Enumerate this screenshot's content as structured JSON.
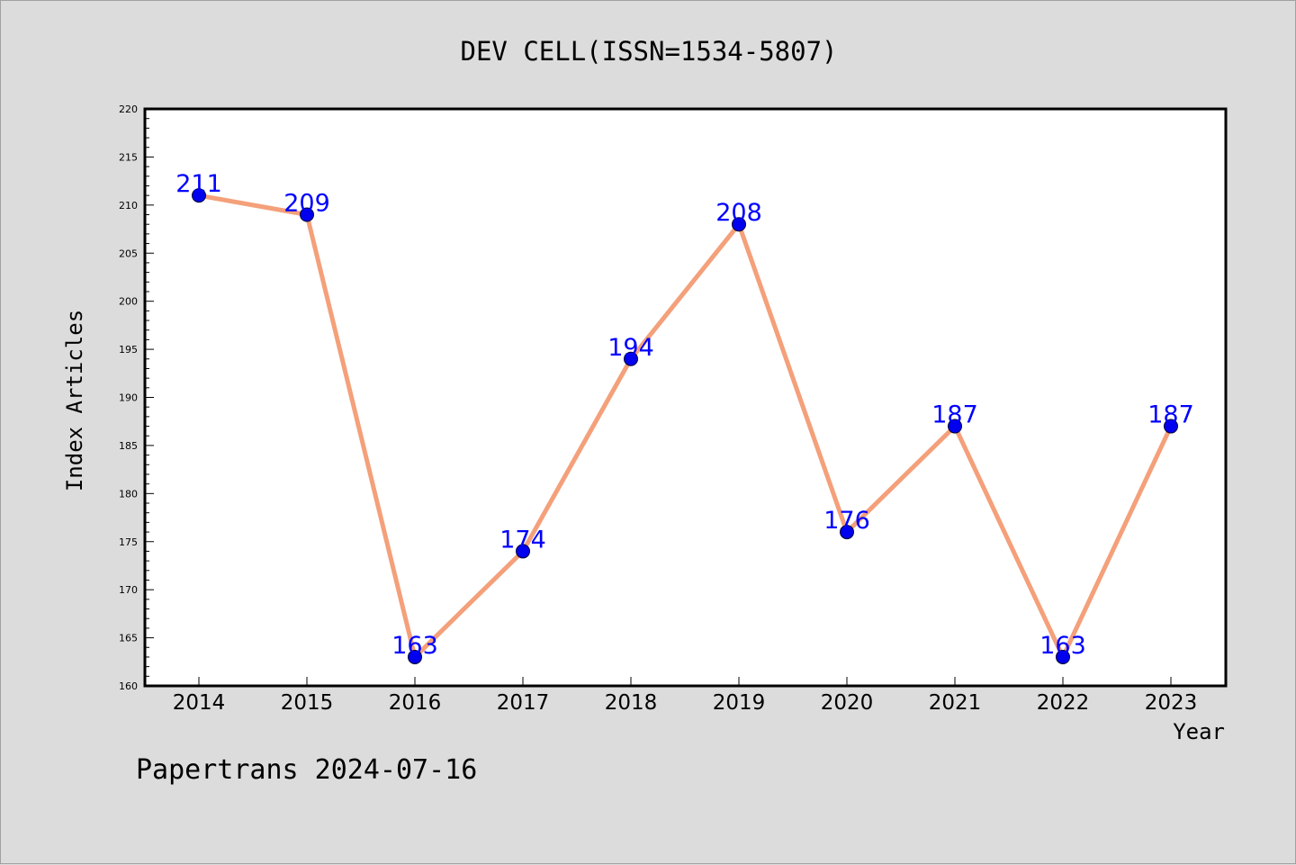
{
  "watermark": "Papertrans 2024-07-16",
  "colors": {
    "background": "#dcdcdc",
    "plot_background": "#ffffff",
    "line": "#f4a07a",
    "marker": "#0000ee",
    "data_label": "#0000ff",
    "text": "#000000"
  },
  "chart_data": {
    "type": "line",
    "title": "DEV CELL(ISSN=1534-5807)",
    "xlabel": "Year",
    "ylabel": "Index Articles",
    "categories": [
      "2014",
      "2015",
      "2016",
      "2017",
      "2018",
      "2019",
      "2020",
      "2021",
      "2022",
      "2023"
    ],
    "series": [
      {
        "values": [
          211,
          209,
          163,
          174,
          194,
          208,
          176,
          187,
          163,
          187
        ]
      }
    ],
    "ylim": [
      160,
      220
    ],
    "yticks": [
      160,
      165,
      170,
      175,
      180,
      185,
      190,
      195,
      200,
      205,
      210,
      215,
      220
    ],
    "grid": false,
    "legend": "none"
  }
}
